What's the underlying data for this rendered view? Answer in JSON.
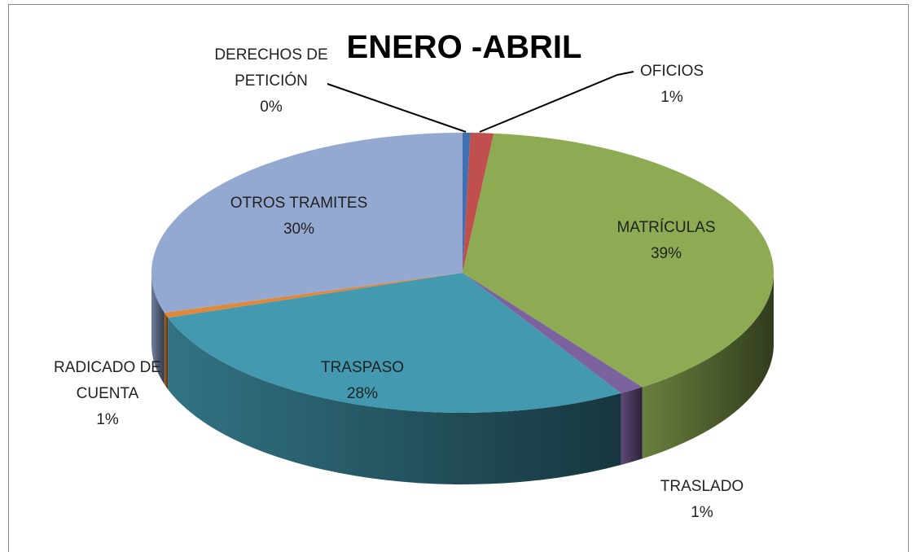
{
  "chart_data": {
    "type": "pie",
    "title": "ENERO -ABRIL",
    "categories": [
      "DERECHOS DE PETICIÓN",
      "OFICIOS",
      "MATRÍCULAS",
      "TRASLADO",
      "TRASPASO",
      "RADICADO DE CUENTA",
      "OTROS TRAMITES"
    ],
    "values": [
      0.4,
      1.2,
      38.6,
      1.3,
      28.3,
      0.6,
      29.6
    ],
    "value_labels": [
      "0%",
      "1%",
      "39%",
      "1%",
      "28%",
      "1%",
      "30%"
    ],
    "colors": [
      "#3f70b3",
      "#c0504d",
      "#8dab52",
      "#7d62a0",
      "#4299b0",
      "#e0883a",
      "#94a9d1"
    ]
  }
}
